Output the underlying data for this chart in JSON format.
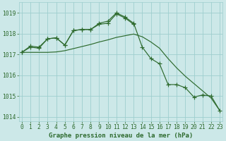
{
  "x": [
    0,
    1,
    2,
    3,
    4,
    5,
    6,
    7,
    8,
    9,
    10,
    11,
    12,
    13,
    14,
    15,
    16,
    17,
    18,
    19,
    20,
    21,
    22,
    23
  ],
  "line1": [
    1017.1,
    1017.4,
    1017.35,
    1017.75,
    1017.8,
    1017.45,
    1018.15,
    1018.2,
    1018.2,
    1018.5,
    1018.6,
    1019.0,
    1018.8,
    1018.5,
    1017.35,
    1016.8,
    1016.55,
    1015.55,
    1015.55,
    1015.4,
    1014.95,
    1015.05,
    1015.0,
    1014.3
  ],
  "line2": [
    1017.1,
    1017.35,
    1017.3,
    1017.75,
    1017.8,
    1017.45,
    1018.15,
    1018.2,
    1018.2,
    1018.45,
    1018.5,
    1018.95,
    1018.75,
    1018.45,
    null,
    null,
    null,
    null,
    null,
    null,
    null,
    null,
    null,
    null
  ],
  "line_smooth": [
    1017.1,
    1017.1,
    1017.1,
    1017.1,
    1017.12,
    1017.18,
    1017.28,
    1017.38,
    1017.48,
    1017.6,
    1017.7,
    1017.82,
    1017.9,
    1017.98,
    1017.85,
    1017.6,
    1017.3,
    1016.8,
    1016.35,
    1015.95,
    1015.6,
    1015.25,
    1014.9,
    1014.3
  ],
  "background_color": "#cce8e8",
  "grid_color": "#9ecece",
  "line_color": "#2d6a2d",
  "xlabel": "Graphe pression niveau de la mer (hPa)",
  "ylim": [
    1013.8,
    1019.5
  ],
  "yticks": [
    1014,
    1015,
    1016,
    1017,
    1018,
    1019
  ],
  "xticks": [
    0,
    1,
    2,
    3,
    4,
    5,
    6,
    7,
    8,
    9,
    10,
    11,
    12,
    13,
    14,
    15,
    16,
    17,
    18,
    19,
    20,
    21,
    22,
    23
  ],
  "xlabel_fontsize": 6.5,
  "tick_fontsize": 5.8,
  "marker_size": 3.5,
  "linewidth": 0.85
}
